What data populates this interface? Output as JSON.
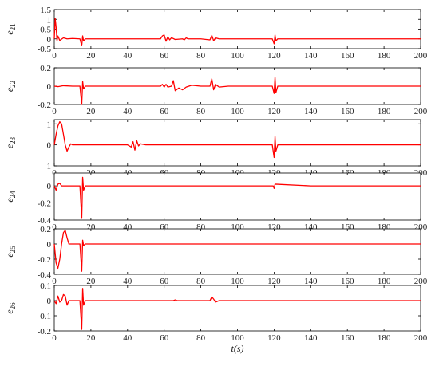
{
  "chart_data": [
    {
      "type": "line",
      "ylabel_base": "e",
      "ylabel_sub": "21",
      "xlim": [
        0,
        200
      ],
      "ylim": [
        -0.5,
        1.5
      ],
      "yticks": [
        "1.5",
        "1",
        "0.5",
        "0",
        "-0.5"
      ],
      "xticks": [
        "0",
        "20",
        "40",
        "60",
        "80",
        "100",
        "120",
        "140",
        "160",
        "180",
        "200"
      ],
      "color": "#ff0000",
      "x": [
        0,
        0.5,
        1,
        1.5,
        2,
        3,
        5,
        7,
        10,
        14,
        15,
        15.5,
        16,
        17,
        20,
        40,
        58,
        59,
        60,
        61,
        62,
        63,
        64,
        66,
        70,
        71,
        72,
        73,
        80,
        85,
        86,
        87,
        88,
        90,
        100,
        119,
        120,
        120.5,
        121,
        122,
        140,
        160,
        180,
        200
      ],
      "y": [
        0,
        1.05,
        0.6,
        -0.1,
        0.15,
        -0.08,
        0.05,
        0,
        0.02,
        0,
        -0.35,
        0.15,
        -0.1,
        0,
        0,
        0,
        0,
        0.15,
        0.2,
        -0.12,
        0.1,
        -0.05,
        0.06,
        -0.03,
        0,
        -0.05,
        0.05,
        0,
        0,
        -0.05,
        0.18,
        -0.1,
        0.05,
        0,
        0,
        0,
        -0.25,
        0.2,
        -0.1,
        0,
        0,
        0,
        0,
        0
      ]
    },
    {
      "type": "line",
      "ylabel_base": "e",
      "ylabel_sub": "22",
      "xlim": [
        0,
        200
      ],
      "ylim": [
        -0.2,
        0.2
      ],
      "yticks": [
        "0.2",
        "0",
        "-0.2"
      ],
      "xticks": [
        "0",
        "20",
        "40",
        "60",
        "80",
        "100",
        "120",
        "140",
        "160",
        "180",
        "200"
      ],
      "color": "#ff0000",
      "x": [
        0,
        2,
        5,
        10,
        14,
        15,
        15.5,
        16,
        17,
        20,
        40,
        58,
        59,
        60,
        61,
        62,
        64,
        65,
        66,
        68,
        70,
        72,
        75,
        80,
        85,
        86,
        87,
        88,
        90,
        95,
        100,
        119,
        120,
        120.5,
        121,
        122,
        140,
        160,
        180,
        200
      ],
      "y": [
        0,
        -0.005,
        0.005,
        0,
        0,
        -0.2,
        0.05,
        -0.03,
        0,
        0,
        0,
        0,
        0.02,
        -0.01,
        0.02,
        -0.01,
        0,
        0.06,
        -0.05,
        -0.02,
        -0.04,
        -0.01,
        0.01,
        0,
        0,
        0.08,
        -0.04,
        0.02,
        -0.01,
        0,
        0,
        0,
        -0.08,
        0.1,
        -0.07,
        0,
        0,
        0,
        0,
        0
      ]
    },
    {
      "type": "line",
      "ylabel_base": "e",
      "ylabel_sub": "23",
      "xlim": [
        0,
        200
      ],
      "ylim": [
        -1,
        1.2
      ],
      "yticks": [
        "1",
        "0",
        "-1"
      ],
      "xticks": [
        "0",
        "20",
        "40",
        "60",
        "80",
        "100",
        "120",
        "140",
        "160",
        "180",
        "200"
      ],
      "color": "#ff0000",
      "x": [
        0,
        1,
        2,
        3,
        4,
        5,
        6,
        7,
        8,
        9,
        10,
        12,
        15,
        20,
        40,
        42,
        43,
        44,
        45,
        46,
        47,
        50,
        60,
        80,
        100,
        119,
        120,
        120.5,
        121,
        122,
        140,
        160,
        180,
        200
      ],
      "y": [
        0,
        0.5,
        0.9,
        1.1,
        1,
        0.5,
        0,
        -0.3,
        -0.1,
        0.05,
        0,
        0,
        0,
        0,
        0,
        -0.1,
        0.15,
        -0.25,
        0.2,
        -0.05,
        0.05,
        0,
        0,
        0,
        0,
        0,
        -0.6,
        0.4,
        -0.3,
        0,
        0,
        0,
        0,
        0
      ]
    },
    {
      "type": "line",
      "ylabel_base": "e",
      "ylabel_sub": "24",
      "xlim": [
        0,
        200
      ],
      "ylim": [
        -0.4,
        0.15
      ],
      "yticks": [
        "0",
        "-0.2",
        "-0.4"
      ],
      "xticks": [
        "0",
        "20",
        "40",
        "60",
        "80",
        "100",
        "120",
        "140",
        "160",
        "180",
        "200"
      ],
      "color": "#ff0000",
      "x": [
        0,
        1,
        2,
        3,
        4,
        5,
        8,
        14,
        15,
        15.5,
        16,
        17,
        20,
        40,
        60,
        80,
        100,
        119.5,
        120,
        120.5,
        140,
        160,
        180,
        200
      ],
      "y": [
        0,
        -0.05,
        0.02,
        0.03,
        0,
        0,
        0,
        0,
        -0.38,
        0.1,
        -0.05,
        0,
        0,
        0,
        0,
        0,
        0,
        0,
        -0.03,
        0.02,
        0,
        0,
        0,
        0
      ]
    },
    {
      "type": "line",
      "ylabel_base": "e",
      "ylabel_sub": "25",
      "xlim": [
        0,
        200
      ],
      "ylim": [
        -0.4,
        0.2
      ],
      "yticks": [
        "0.2",
        "0",
        "-0.2",
        "-0.4"
      ],
      "xticks": [
        "0",
        "20",
        "40",
        "60",
        "80",
        "100",
        "120",
        "140",
        "160",
        "180",
        "200"
      ],
      "color": "#ff0000",
      "x": [
        0,
        1,
        2,
        3,
        4,
        5,
        6,
        7,
        8,
        10,
        14,
        15,
        15.5,
        16,
        17,
        20,
        40,
        60,
        80,
        100,
        120,
        140,
        160,
        180,
        200
      ],
      "y": [
        0,
        -0.25,
        -0.32,
        -0.2,
        0,
        0.15,
        0.18,
        0.08,
        0,
        0,
        0,
        -0.36,
        0.05,
        -0.02,
        0,
        0,
        0,
        0,
        0,
        0,
        0,
        0,
        0,
        0,
        0
      ]
    },
    {
      "type": "line",
      "ylabel_base": "e",
      "ylabel_sub": "26",
      "xlim": [
        0,
        200
      ],
      "ylim": [
        -0.2,
        0.1
      ],
      "yticks": [
        "0.1",
        "0",
        "-0.1",
        "-0.2"
      ],
      "xticks": [
        "0",
        "20",
        "40",
        "60",
        "80",
        "100",
        "120",
        "140",
        "160",
        "180",
        "200"
      ],
      "xlabel": "t(s)",
      "color": "#ff0000",
      "x": [
        0,
        1,
        2,
        3,
        4,
        5,
        6,
        7,
        8,
        10,
        14,
        15,
        15.5,
        16,
        17,
        20,
        40,
        60,
        65,
        66,
        67,
        80,
        85,
        86,
        87,
        88,
        90,
        100,
        120,
        140,
        160,
        180,
        200
      ],
      "y": [
        0,
        -0.02,
        0.03,
        -0.01,
        0,
        0.04,
        0.03,
        -0.03,
        0,
        0,
        0,
        -0.19,
        0.08,
        -0.03,
        0,
        0,
        0,
        0,
        0,
        0.005,
        0,
        0,
        0,
        0.025,
        0.01,
        -0.01,
        0,
        0,
        0,
        0,
        0,
        0,
        0
      ]
    }
  ]
}
